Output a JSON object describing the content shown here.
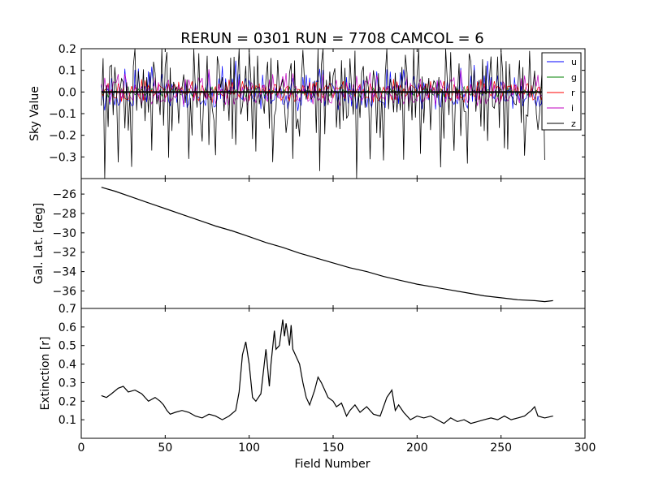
{
  "figure": {
    "title": "RERUN = 0301 RUN = 7708 CAMCOL = 6",
    "xlabel": "Field Number"
  },
  "chart_data": [
    {
      "type": "line",
      "id": "sky",
      "ylabel": "Sky Value",
      "xlim": [
        0,
        300
      ],
      "ylim": [
        -0.4,
        0.2
      ],
      "yticks": [
        0.2,
        0.1,
        0.0,
        -0.1,
        -0.2,
        -0.3
      ],
      "ytick_labels": [
        "0.2",
        "0.1",
        "0.0",
        "−0.1",
        "−0.2",
        "−0.3"
      ],
      "legend_position": "top-right",
      "x_range": [
        12,
        276
      ],
      "series": [
        {
          "name": "u",
          "color": "#0000ff",
          "amplitude": 0.05,
          "values": [
            0.03,
            -0.02,
            0.06,
            -0.04,
            0.1,
            0.02,
            -0.05,
            0.08,
            0.01,
            -0.03,
            0.12,
            0.04,
            -0.02,
            0.07,
            -0.06,
            0.09,
            0.03,
            -0.01,
            0.05,
            0.11,
            -0.04,
            0.02,
            0.06,
            -0.03,
            0.08,
            0.04,
            -0.05,
            0.1,
            0.01,
            0.05,
            -0.02,
            0.07,
            0.03,
            0.09,
            -0.04,
            0.06,
            0.02,
            0.11,
            -0.01,
            0.05,
            0.08,
            -0.03,
            0.04,
            0.1,
            0.02,
            -0.02,
            0.07,
            0.05,
            0.09,
            0.01
          ]
        },
        {
          "name": "g",
          "color": "#008000",
          "amplitude": 0.01,
          "values": [
            0.01,
            -0.01,
            0.02,
            0.0,
            0.01,
            -0.02,
            0.02,
            0.01,
            -0.01,
            0.0,
            0.02,
            0.01,
            -0.01,
            0.01,
            0.0,
            0.02,
            -0.01,
            0.01,
            0.0,
            0.01,
            -0.02,
            0.01,
            0.02,
            0.0,
            -0.01,
            0.01,
            0.02,
            -0.01,
            0.0,
            0.01,
            0.01,
            -0.02,
            0.02,
            0.0,
            0.01,
            -0.01,
            0.01,
            0.02,
            0.0,
            -0.01,
            0.01,
            0.0,
            0.02,
            -0.01,
            0.01,
            0.0,
            0.01,
            0.02,
            -0.01,
            0.0
          ]
        },
        {
          "name": "r",
          "color": "#ff0000",
          "amplitude": 0.02,
          "values": [
            0.02,
            -0.03,
            0.04,
            0.01,
            -0.02,
            0.05,
            0.0,
            -0.04,
            0.03,
            0.02,
            -0.01,
            0.06,
            -0.03,
            0.02,
            0.04,
            -0.02,
            0.01,
            0.05,
            -0.04,
            0.03,
            0.0,
            0.04,
            -0.03,
            0.02,
            0.05,
            -0.01,
            0.03,
            -0.04,
            0.04,
            0.01,
            -0.02,
            0.05,
            0.02,
            -0.03,
            0.04,
            0.0,
            0.03,
            -0.02,
            0.05,
            0.01,
            -0.04,
            0.03,
            0.02,
            -0.01,
            0.04,
            0.0,
            0.03,
            -0.02,
            0.02,
            0.01
          ]
        },
        {
          "name": "i",
          "color": "#bf00bf",
          "amplitude": 0.03,
          "values": [
            0.04,
            -0.02,
            0.08,
            -0.05,
            0.06,
            0.01,
            -0.03,
            0.09,
            -0.06,
            0.05,
            0.02,
            -0.04,
            0.07,
            0.0,
            -0.05,
            0.06,
            0.03,
            -0.02,
            0.08,
            -0.04,
            0.05,
            0.01,
            -0.06,
            0.07,
            0.02,
            -0.03,
            0.06,
            -0.05,
            0.04,
            0.08,
            -0.02,
            0.03,
            -0.06,
            0.07,
            0.01,
            -0.04,
            0.06,
            0.02,
            -0.03,
            0.05,
            0.07,
            -0.05,
            0.04,
            0.0,
            0.06,
            -0.02,
            0.05,
            0.03,
            -0.04,
            0.02
          ]
        },
        {
          "name": "z",
          "color": "#000000",
          "amplitude": 0.15,
          "values": [
            0.0,
            -0.14,
            0.19,
            -0.18,
            0.05,
            -0.12,
            -0.2,
            0.1,
            -0.16,
            0.02,
            -0.24,
            0.08,
            -0.1,
            -0.19,
            0.15,
            -0.27,
            0.04,
            -0.13,
            0.11,
            -0.22,
            -0.06,
            0.17,
            -0.3,
            0.03,
            -0.15,
            0.09,
            -0.36,
            -0.08,
            0.12,
            -0.18,
            -0.02,
            0.14,
            -0.25,
            0.06,
            -0.11,
            -0.21,
            0.16,
            -0.05,
            -0.28,
            0.07,
            -0.14,
            0.1,
            -0.23,
            0.2,
            -0.09,
            -0.17,
            0.05,
            -0.26,
            0.08,
            -0.12
          ]
        }
      ]
    },
    {
      "type": "line",
      "id": "gallat",
      "ylabel": "Gal. Lat. [deg]",
      "xlim": [
        0,
        300
      ],
      "ylim": [
        -37.8,
        -24.4
      ],
      "yticks": [
        -26,
        -28,
        -30,
        -32,
        -34,
        -36
      ],
      "ytick_labels": [
        "−26",
        "−28",
        "−30",
        "−32",
        "−34",
        "−36"
      ],
      "series": [
        {
          "name": "",
          "color": "#000000",
          "x": [
            12,
            20,
            30,
            40,
            50,
            60,
            70,
            80,
            90,
            100,
            110,
            120,
            130,
            140,
            150,
            160,
            170,
            180,
            190,
            200,
            210,
            220,
            230,
            240,
            250,
            260,
            270,
            276,
            281
          ],
          "y": [
            -25.3,
            -25.7,
            -26.3,
            -26.9,
            -27.5,
            -28.1,
            -28.7,
            -29.3,
            -29.8,
            -30.4,
            -31.0,
            -31.5,
            -32.1,
            -32.6,
            -33.1,
            -33.6,
            -34.0,
            -34.5,
            -34.9,
            -35.3,
            -35.6,
            -35.9,
            -36.2,
            -36.5,
            -36.7,
            -36.9,
            -37.0,
            -37.1,
            -37.0
          ]
        }
      ]
    },
    {
      "type": "line",
      "id": "extinction",
      "ylabel": "Extinction [r]",
      "xlim": [
        0,
        300
      ],
      "ylim": [
        0.0,
        0.7
      ],
      "yticks": [
        0.7,
        0.6,
        0.5,
        0.4,
        0.3,
        0.2,
        0.1
      ],
      "ytick_labels": [
        "0.7",
        "0.6",
        "0.5",
        "0.4",
        "0.3",
        "0.2",
        "0.1"
      ],
      "xticks": [
        0,
        50,
        100,
        150,
        200,
        250,
        300
      ],
      "series": [
        {
          "name": "",
          "color": "#000000",
          "x": [
            12,
            15,
            18,
            22,
            25,
            28,
            32,
            36,
            40,
            44,
            47,
            49,
            51,
            53,
            56,
            60,
            64,
            68,
            72,
            76,
            80,
            84,
            88,
            92,
            94,
            96,
            98,
            100,
            102,
            104,
            107,
            110,
            112,
            113,
            115,
            116,
            118,
            120,
            121,
            122,
            124,
            125,
            126,
            128,
            130,
            132,
            134,
            136,
            139,
            141,
            143,
            145,
            147,
            150,
            152,
            155,
            158,
            160,
            163,
            166,
            170,
            174,
            178,
            182,
            185,
            187,
            189,
            192,
            196,
            200,
            204,
            208,
            212,
            216,
            220,
            224,
            228,
            232,
            236,
            240,
            244,
            248,
            252,
            256,
            260,
            264,
            268,
            270,
            272,
            276,
            281
          ],
          "y": [
            0.23,
            0.22,
            0.24,
            0.27,
            0.28,
            0.25,
            0.26,
            0.24,
            0.2,
            0.22,
            0.2,
            0.18,
            0.15,
            0.13,
            0.14,
            0.15,
            0.14,
            0.12,
            0.11,
            0.13,
            0.12,
            0.1,
            0.12,
            0.15,
            0.25,
            0.45,
            0.52,
            0.4,
            0.22,
            0.2,
            0.24,
            0.48,
            0.28,
            0.4,
            0.58,
            0.48,
            0.5,
            0.64,
            0.55,
            0.62,
            0.5,
            0.61,
            0.48,
            0.44,
            0.4,
            0.3,
            0.22,
            0.18,
            0.26,
            0.33,
            0.3,
            0.26,
            0.22,
            0.2,
            0.17,
            0.19,
            0.12,
            0.15,
            0.18,
            0.14,
            0.17,
            0.13,
            0.12,
            0.22,
            0.26,
            0.15,
            0.18,
            0.14,
            0.1,
            0.12,
            0.11,
            0.12,
            0.1,
            0.08,
            0.11,
            0.09,
            0.1,
            0.08,
            0.09,
            0.1,
            0.11,
            0.1,
            0.12,
            0.1,
            0.11,
            0.12,
            0.15,
            0.17,
            0.12,
            0.11,
            0.12
          ]
        }
      ]
    }
  ]
}
